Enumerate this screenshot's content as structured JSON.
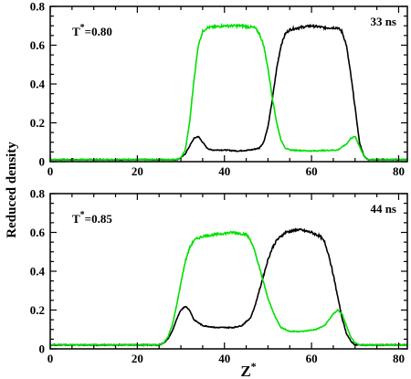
{
  "chart_data": {
    "type": "line",
    "ylabel": "Reduced density",
    "xlabel_main": "Z",
    "xlabel_sup": "*",
    "colors": {
      "black_series": "#000000",
      "green_series": "#00e000"
    },
    "panels": [
      {
        "temp_prefix": "T",
        "temp_sup": "*",
        "temp_value": "=0.80",
        "time_label": "33 ns",
        "xlim": [
          0,
          82
        ],
        "ylim": [
          0,
          0.8
        ],
        "xticks": [
          "0",
          "20",
          "40",
          "60",
          "80"
        ],
        "yticks": [
          "0",
          "0.2",
          "0.4",
          "0.6",
          "0.8"
        ],
        "xtick_values": [
          0,
          20,
          40,
          60,
          80
        ],
        "ytick_values": [
          0,
          0.2,
          0.4,
          0.6,
          0.8
        ],
        "series": [
          {
            "color": "black",
            "points": [
              [
                0,
                0.01
              ],
              [
                10,
                0.01
              ],
              [
                20,
                0.01
              ],
              [
                29,
                0.01
              ],
              [
                30,
                0.02
              ],
              [
                31,
                0.04
              ],
              [
                32,
                0.08
              ],
              [
                33,
                0.12
              ],
              [
                34,
                0.13
              ],
              [
                35,
                0.1
              ],
              [
                36,
                0.07
              ],
              [
                37,
                0.06
              ],
              [
                40,
                0.06
              ],
              [
                43,
                0.055
              ],
              [
                46,
                0.06
              ],
              [
                48,
                0.07
              ],
              [
                49,
                0.1
              ],
              [
                50,
                0.18
              ],
              [
                51,
                0.32
              ],
              [
                52,
                0.48
              ],
              [
                53,
                0.6
              ],
              [
                54,
                0.66
              ],
              [
                55,
                0.68
              ],
              [
                57,
                0.69
              ],
              [
                60,
                0.7
              ],
              [
                63,
                0.69
              ],
              [
                66,
                0.69
              ],
              [
                67,
                0.67
              ],
              [
                68,
                0.6
              ],
              [
                69,
                0.45
              ],
              [
                70,
                0.28
              ],
              [
                71,
                0.1
              ],
              [
                72,
                0.03
              ],
              [
                73,
                0.01
              ],
              [
                82,
                0.01
              ]
            ]
          },
          {
            "color": "green",
            "points": [
              [
                0,
                0.01
              ],
              [
                10,
                0.01
              ],
              [
                20,
                0.01
              ],
              [
                29,
                0.01
              ],
              [
                30,
                0.02
              ],
              [
                31,
                0.06
              ],
              [
                32,
                0.2
              ],
              [
                33,
                0.42
              ],
              [
                34,
                0.6
              ],
              [
                35,
                0.67
              ],
              [
                36,
                0.69
              ],
              [
                40,
                0.7
              ],
              [
                44,
                0.7
              ],
              [
                47,
                0.69
              ],
              [
                48,
                0.66
              ],
              [
                49,
                0.6
              ],
              [
                50,
                0.48
              ],
              [
                51,
                0.33
              ],
              [
                52,
                0.2
              ],
              [
                53,
                0.11
              ],
              [
                54,
                0.07
              ],
              [
                55,
                0.06
              ],
              [
                60,
                0.055
              ],
              [
                66,
                0.06
              ],
              [
                68,
                0.09
              ],
              [
                69,
                0.12
              ],
              [
                70,
                0.13
              ],
              [
                71,
                0.08
              ],
              [
                72,
                0.03
              ],
              [
                73,
                0.01
              ],
              [
                82,
                0.01
              ]
            ]
          }
        ]
      },
      {
        "temp_prefix": "T",
        "temp_sup": "*",
        "temp_value": "=0.85",
        "time_label": "44 ns",
        "xlim": [
          0,
          82
        ],
        "ylim": [
          0,
          0.8
        ],
        "xticks": [
          "0",
          "20",
          "40",
          "60",
          "80"
        ],
        "yticks": [
          "0",
          "0.2",
          "0.4",
          "0.6",
          "0.8"
        ],
        "xtick_values": [
          0,
          20,
          40,
          60,
          80
        ],
        "ytick_values": [
          0,
          0.2,
          0.4,
          0.6,
          0.8
        ],
        "series": [
          {
            "color": "black",
            "points": [
              [
                0,
                0.02
              ],
              [
                10,
                0.02
              ],
              [
                20,
                0.02
              ],
              [
                25,
                0.02
              ],
              [
                26,
                0.03
              ],
              [
                27,
                0.05
              ],
              [
                28,
                0.09
              ],
              [
                29,
                0.15
              ],
              [
                30,
                0.2
              ],
              [
                31,
                0.22
              ],
              [
                32,
                0.2
              ],
              [
                33,
                0.15
              ],
              [
                35,
                0.12
              ],
              [
                38,
                0.11
              ],
              [
                42,
                0.11
              ],
              [
                44,
                0.12
              ],
              [
                46,
                0.16
              ],
              [
                47,
                0.22
              ],
              [
                48,
                0.3
              ],
              [
                49,
                0.38
              ],
              [
                50,
                0.46
              ],
              [
                51,
                0.52
              ],
              [
                52,
                0.56
              ],
              [
                54,
                0.6
              ],
              [
                57,
                0.615
              ],
              [
                60,
                0.6
              ],
              [
                62,
                0.58
              ],
              [
                63,
                0.55
              ],
              [
                64,
                0.48
              ],
              [
                65,
                0.38
              ],
              [
                66,
                0.27
              ],
              [
                67,
                0.16
              ],
              [
                68,
                0.08
              ],
              [
                69,
                0.04
              ],
              [
                70,
                0.02
              ],
              [
                82,
                0.02
              ]
            ]
          },
          {
            "color": "green",
            "points": [
              [
                0,
                0.02
              ],
              [
                10,
                0.02
              ],
              [
                20,
                0.02
              ],
              [
                25,
                0.02
              ],
              [
                26,
                0.03
              ],
              [
                27,
                0.06
              ],
              [
                28,
                0.12
              ],
              [
                29,
                0.22
              ],
              [
                30,
                0.34
              ],
              [
                31,
                0.45
              ],
              [
                32,
                0.52
              ],
              [
                33,
                0.56
              ],
              [
                35,
                0.58
              ],
              [
                38,
                0.59
              ],
              [
                42,
                0.6
              ],
              [
                45,
                0.59
              ],
              [
                46,
                0.56
              ],
              [
                47,
                0.5
              ],
              [
                48,
                0.42
              ],
              [
                49,
                0.34
              ],
              [
                50,
                0.26
              ],
              [
                51,
                0.2
              ],
              [
                52,
                0.15
              ],
              [
                53,
                0.11
              ],
              [
                55,
                0.09
              ],
              [
                58,
                0.09
              ],
              [
                61,
                0.1
              ],
              [
                63,
                0.12
              ],
              [
                64,
                0.15
              ],
              [
                65,
                0.18
              ],
              [
                66,
                0.2
              ],
              [
                67,
                0.18
              ],
              [
                68,
                0.12
              ],
              [
                69,
                0.06
              ],
              [
                70,
                0.03
              ],
              [
                71,
                0.02
              ],
              [
                82,
                0.02
              ]
            ]
          }
        ]
      }
    ]
  }
}
